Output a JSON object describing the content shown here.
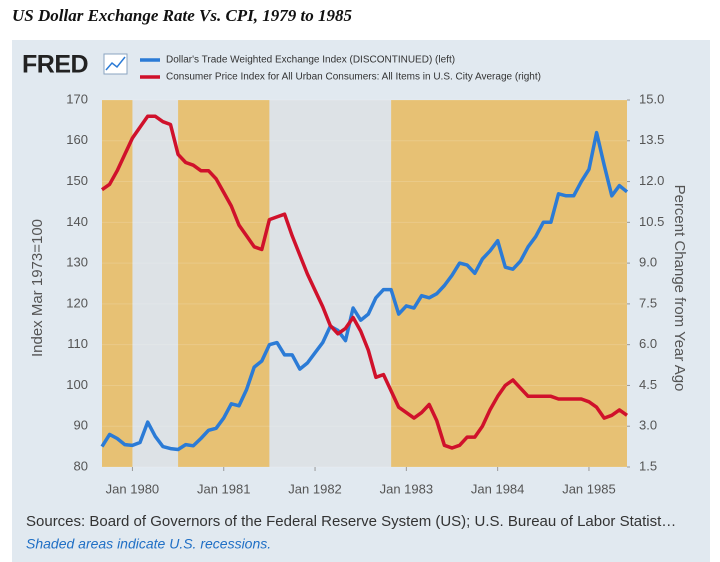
{
  "chart_data": {
    "type": "line",
    "title": "US Dollar Exchange Rate Vs. CPI, 1979 to 1985",
    "logo": "FRED",
    "ylabel": "Index Mar 1973=100",
    "y2label": "Percent Change from Year Ago",
    "source": "Sources: Board of Governors of the Federal Reserve System (US); U.S. Bureau of Labor Statist…",
    "note": "Shaded areas indicate U.S. recessions.",
    "background_color": "#e7c174",
    "recession_color": "#dde2e6",
    "recessions": [
      {
        "start": "1980-01",
        "end": "1980-07"
      },
      {
        "start": "1981-07",
        "end": "1982-11"
      }
    ],
    "x": [
      "1979-09",
      "1979-10",
      "1979-11",
      "1979-12",
      "1980-01",
      "1980-02",
      "1980-03",
      "1980-04",
      "1980-05",
      "1980-06",
      "1980-07",
      "1980-08",
      "1980-09",
      "1980-10",
      "1980-11",
      "1980-12",
      "1981-01",
      "1981-02",
      "1981-03",
      "1981-04",
      "1981-05",
      "1981-06",
      "1981-07",
      "1981-08",
      "1981-09",
      "1981-10",
      "1981-11",
      "1981-12",
      "1982-01",
      "1982-02",
      "1982-03",
      "1982-04",
      "1982-05",
      "1982-06",
      "1982-07",
      "1982-08",
      "1982-09",
      "1982-10",
      "1982-11",
      "1982-12",
      "1983-01",
      "1983-02",
      "1983-03",
      "1983-04",
      "1983-05",
      "1983-06",
      "1983-07",
      "1983-08",
      "1983-09",
      "1983-10",
      "1983-11",
      "1983-12",
      "1984-01",
      "1984-02",
      "1984-03",
      "1984-04",
      "1984-05",
      "1984-06",
      "1984-07",
      "1984-08",
      "1984-09",
      "1984-10",
      "1984-11",
      "1984-12",
      "1985-01",
      "1985-02",
      "1985-03",
      "1985-04",
      "1985-05",
      "1985-06"
    ],
    "xlim": [
      "1979-09",
      "1985-06"
    ],
    "xticks": [
      {
        "value": "1980-01",
        "label": "Jan 1980"
      },
      {
        "value": "1981-01",
        "label": "Jan 1981"
      },
      {
        "value": "1982-01",
        "label": "Jan 1982"
      },
      {
        "value": "1983-01",
        "label": "Jan 1983"
      },
      {
        "value": "1984-01",
        "label": "Jan 1984"
      },
      {
        "value": "1985-01",
        "label": "Jan 1985"
      }
    ],
    "ylim": [
      80,
      170
    ],
    "yticks": [
      80,
      90,
      100,
      110,
      120,
      130,
      140,
      150,
      160,
      170
    ],
    "y2lim": [
      1.5,
      15
    ],
    "y2ticks": [
      {
        "value": 1.5,
        "label": "1.5"
      },
      {
        "value": 3,
        "label": "3.0"
      },
      {
        "value": 4.5,
        "label": "4.5"
      },
      {
        "value": 6,
        "label": "6.0"
      },
      {
        "value": 7.5,
        "label": "7.5"
      },
      {
        "value": 9,
        "label": "9.0"
      },
      {
        "value": 10.5,
        "label": "10.5"
      },
      {
        "value": 12,
        "label": "12.0"
      },
      {
        "value": 13.5,
        "label": "13.5"
      },
      {
        "value": 15,
        "label": "15.0"
      }
    ],
    "series": [
      {
        "name": "Dollar's Trade Weighted Exchange Index (DISCONTINUED) (left)",
        "color": "#2b7bd6",
        "values": [
          85,
          88,
          87,
          85.5,
          85.3,
          86,
          91,
          87.5,
          85,
          84.5,
          84.3,
          85.5,
          85.2,
          87,
          89,
          89.5,
          92,
          95.5,
          95,
          99,
          104.5,
          106,
          110,
          110.5,
          107.5,
          107.5,
          104,
          105.5,
          108,
          110.5,
          114.5,
          113.5,
          111,
          119,
          116,
          117.5,
          121.5,
          123.5,
          123.5,
          117.5,
          119.5,
          119,
          122,
          121.5,
          122.5,
          124.5,
          127,
          130,
          129.5,
          127.5,
          131,
          133,
          135.5,
          129,
          128.5,
          130.5,
          134,
          136.5,
          140,
          140,
          147,
          146.5,
          146.5,
          150,
          153,
          162,
          154,
          146.5,
          149,
          147.5
        ]
      },
      {
        "name": "Consumer Price Index for All Urban Consumers: All Items in U.S. City Average (right)",
        "color": "#d0112b",
        "axis": "y2",
        "values": [
          11.7,
          11.9,
          12.4,
          13.0,
          13.6,
          14.0,
          14.4,
          14.4,
          14.2,
          14.1,
          13.0,
          12.7,
          12.6,
          12.4,
          12.4,
          12.1,
          11.6,
          11.1,
          10.4,
          10.0,
          9.6,
          9.5,
          10.6,
          10.7,
          10.8,
          10.0,
          9.3,
          8.6,
          8.0,
          7.4,
          6.7,
          6.4,
          6.6,
          7.0,
          6.5,
          5.8,
          4.8,
          4.9,
          4.3,
          3.7,
          3.5,
          3.3,
          3.5,
          3.8,
          3.2,
          2.3,
          2.2,
          2.3,
          2.6,
          2.6,
          3.0,
          3.6,
          4.1,
          4.5,
          4.7,
          4.4,
          4.1,
          4.1,
          4.1,
          4.1,
          4.0,
          4.0,
          4.0,
          4.0,
          3.9,
          3.7,
          3.3,
          3.4,
          3.6,
          3.4
        ]
      }
    ]
  }
}
